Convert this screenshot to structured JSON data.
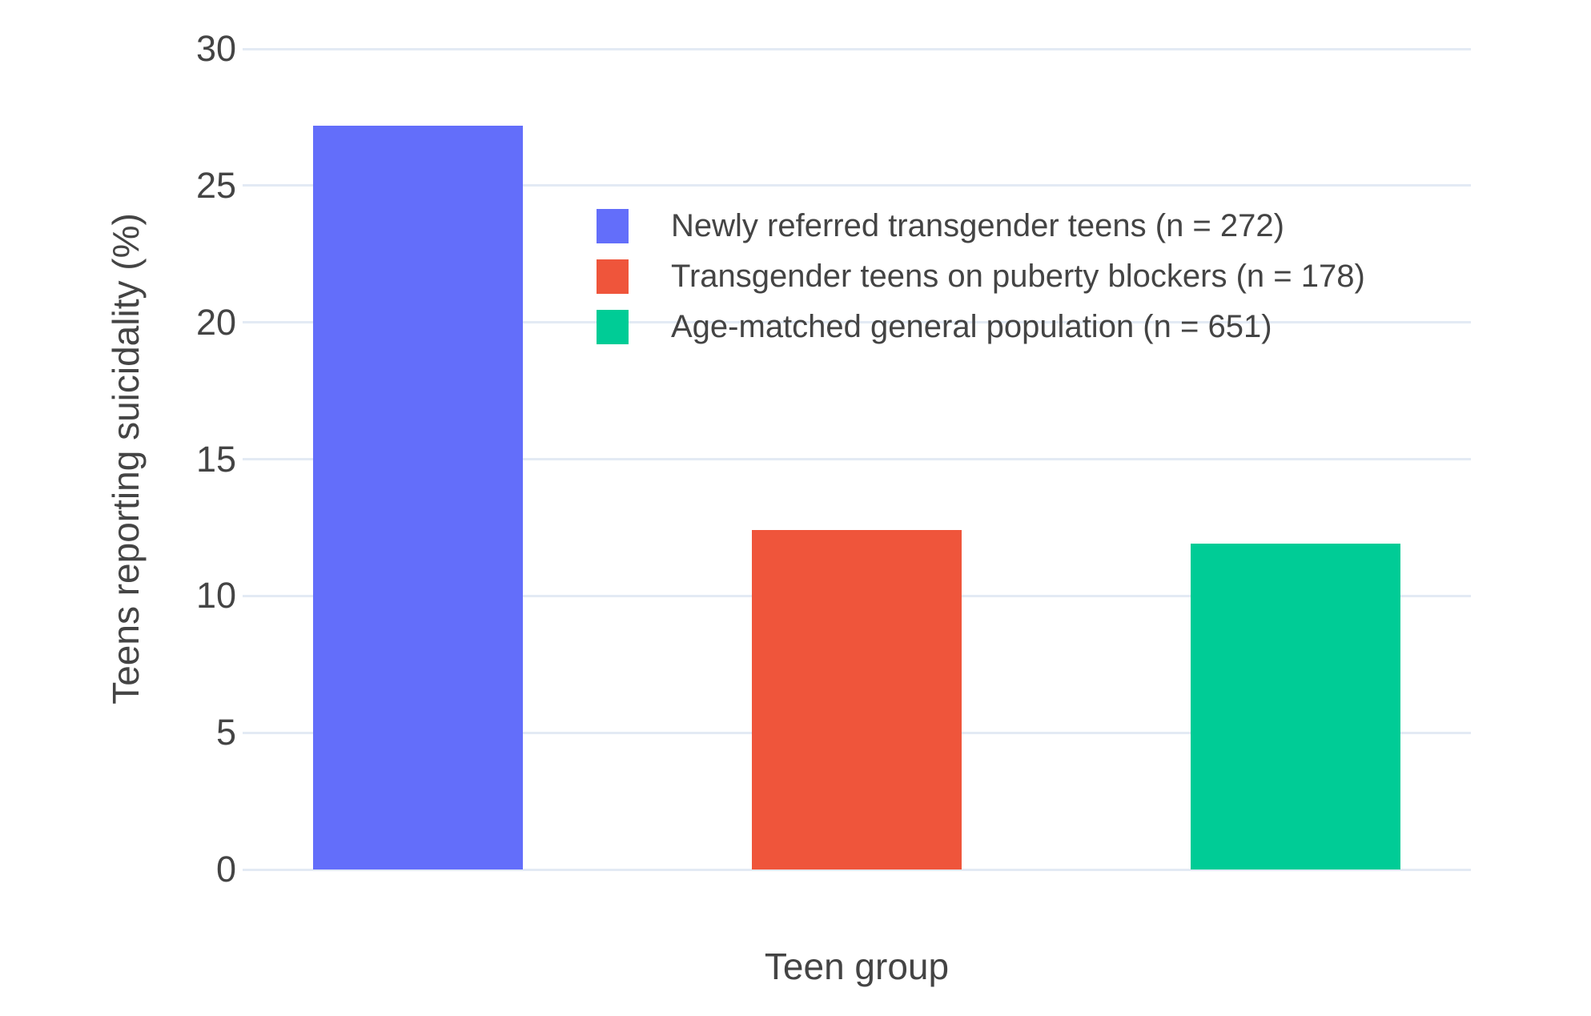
{
  "chart_data": {
    "type": "bar",
    "title": "",
    "xlabel": "Teen group",
    "ylabel": "Teens reporting suicidality (%)",
    "ylim": [
      0,
      30
    ],
    "yticks": [
      0,
      5,
      10,
      15,
      20,
      25,
      30
    ],
    "grid": true,
    "gridcolor": "#E3EAF4",
    "text_color": "#444444",
    "background": "#FFFFFF",
    "legend_position": "inside-top-center",
    "categories": [
      "Newly referred transgender teens (n = 272)",
      "Transgender teens on puberty blockers (n = 178)",
      "Age-matched general population (n = 651)"
    ],
    "values": [
      27.2,
      12.4,
      11.9
    ],
    "bar_colors": [
      "#636EFA",
      "#EF553B",
      "#00CC96"
    ],
    "legend": {
      "entries": [
        {
          "label": "Newly referred transgender teens (n = 272)",
          "color": "#636EFA"
        },
        {
          "label": "Transgender teens on puberty blockers (n = 178)",
          "color": "#EF553B"
        },
        {
          "label": "Age-matched general population (n = 651)",
          "color": "#00CC96"
        }
      ]
    }
  }
}
